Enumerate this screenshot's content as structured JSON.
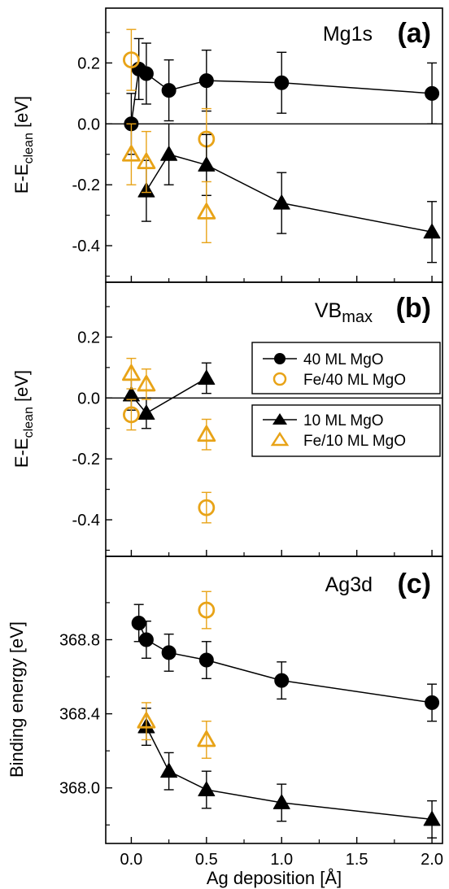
{
  "chart_data": [
    {
      "panel": "(a)",
      "type": "scatter",
      "title": "Mg1s",
      "ylabel_main": "E-E",
      "ylabel_sub": "clean",
      "ylabel_unit": " [eV]",
      "ylim": [
        -0.52,
        0.38
      ],
      "yticks": [
        0.2,
        0.0,
        -0.2,
        -0.4
      ],
      "ytick_labels": [
        "0.2",
        "0.0",
        "-0.2",
        "-0.4"
      ],
      "zero_line": true,
      "series": [
        {
          "key": "mgo40",
          "x": [
            0.0,
            0.05,
            0.1,
            0.25,
            0.5,
            1.0,
            2.0
          ],
          "y": [
            0.0,
            0.18,
            0.165,
            0.11,
            0.142,
            0.135,
            0.1
          ],
          "err": [
            0.1,
            0.1,
            0.1,
            0.1,
            0.1,
            0.1,
            0.1
          ]
        },
        {
          "key": "fe_mgo40",
          "x": [
            0.0,
            0.5
          ],
          "y": [
            0.21,
            -0.05
          ],
          "err": [
            0.1,
            0.1
          ]
        },
        {
          "key": "mgo10",
          "x": [
            0.1,
            0.25,
            0.5,
            1.0,
            2.0
          ],
          "y": [
            -0.22,
            -0.1,
            -0.135,
            -0.26,
            -0.355
          ],
          "err": [
            0.1,
            0.1,
            0.1,
            0.1,
            0.1
          ]
        },
        {
          "key": "fe_mgo10",
          "x": [
            0.0,
            0.1,
            0.5
          ],
          "y": [
            -0.1,
            -0.125,
            -0.29
          ],
          "err": [
            0.1,
            0.1,
            0.1
          ]
        }
      ]
    },
    {
      "panel": "(b)",
      "type": "scatter",
      "title_main": "VB",
      "title_sub": "max",
      "ylabel_main": "E-E",
      "ylabel_sub": "clean",
      "ylabel_unit": " [eV]",
      "ylim": [
        -0.52,
        0.38
      ],
      "yticks": [
        0.2,
        0.0,
        -0.2,
        -0.4
      ],
      "ytick_labels": [
        "0.2",
        "0.0",
        "-0.2",
        "-0.4"
      ],
      "zero_line": true,
      "legend_groups": [
        {
          "placement": "upper-right",
          "entries": [
            {
              "key": "mgo40",
              "label": "40 ML MgO"
            },
            {
              "key": "fe_mgo40",
              "label": "Fe/40 ML MgO"
            }
          ]
        },
        {
          "placement": "middle-right",
          "entries": [
            {
              "key": "mgo10",
              "label": "10 ML MgO"
            },
            {
              "key": "fe_mgo10",
              "label": "Fe/10 ML MgO"
            }
          ]
        }
      ],
      "series": [
        {
          "key": "mgo10",
          "x": [
            0.0,
            0.1,
            0.5
          ],
          "y": [
            0.01,
            -0.05,
            0.065
          ],
          "err": [
            0.05,
            0.05,
            0.05
          ]
        },
        {
          "key": "fe_mgo10",
          "x": [
            0.0,
            0.1,
            0.5
          ],
          "y": [
            0.08,
            0.045,
            -0.12
          ],
          "err": [
            0.05,
            0.05,
            0.05
          ]
        },
        {
          "key": "fe_mgo40",
          "x": [
            0.0,
            0.5
          ],
          "y": [
            -0.055,
            -0.36
          ],
          "err": [
            0.05,
            0.05
          ]
        }
      ]
    },
    {
      "panel": "(c)",
      "type": "scatter",
      "title": "Ag3d",
      "ylabel": "Binding energy [eV]",
      "ylim": [
        367.7,
        369.25
      ],
      "yticks": [
        368.8,
        368.4,
        368.0
      ],
      "ytick_labels": [
        "368.8",
        "368.4",
        "368.0"
      ],
      "xlabel": "Ag deposition [Å]",
      "xticks": [
        0.0,
        0.5,
        1.0,
        1.5,
        2.0
      ],
      "xtick_labels": [
        "0.0",
        "0.5",
        "1.0",
        "1.5",
        "2.0"
      ],
      "series": [
        {
          "key": "mgo40",
          "x": [
            0.05,
            0.1,
            0.25,
            0.5,
            1.0,
            2.0
          ],
          "y": [
            368.89,
            368.8,
            368.73,
            368.69,
            368.58,
            368.46
          ],
          "err": [
            0.1,
            0.1,
            0.1,
            0.1,
            0.1,
            0.1
          ]
        },
        {
          "key": "mgo10",
          "x": [
            0.1,
            0.25,
            0.5,
            1.0,
            2.0
          ],
          "y": [
            368.33,
            368.09,
            367.99,
            367.92,
            367.83
          ],
          "err": [
            0.1,
            0.1,
            0.1,
            0.1,
            0.1
          ]
        },
        {
          "key": "fe_mgo10",
          "x": [
            0.1,
            0.5
          ],
          "y": [
            368.36,
            368.26
          ],
          "err": [
            0.1,
            0.1
          ]
        },
        {
          "key": "fe_mgo40",
          "x": [
            0.5
          ],
          "y": [
            368.96
          ],
          "err": [
            0.1
          ]
        }
      ]
    }
  ],
  "shared": {
    "xlim": [
      -0.17,
      2.07
    ],
    "colors": {
      "black": "#000000",
      "orange": "#e8a317"
    }
  }
}
